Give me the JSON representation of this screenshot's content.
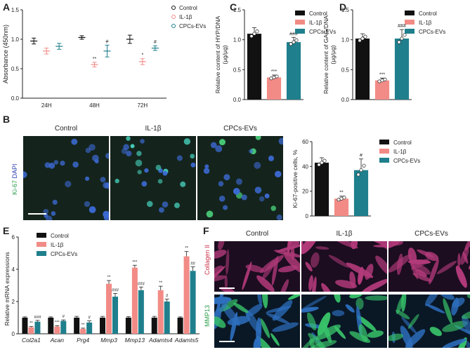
{
  "panels": {
    "A": "A",
    "B": "B",
    "C": "C",
    "D": "D",
    "E": "E",
    "F": "F"
  },
  "colors": {
    "control": "#111111",
    "il1b": "#f28b86",
    "cpcs": "#1f7f8c"
  },
  "chart_data": [
    {
      "id": "A",
      "type": "line",
      "ylabel": "Absorbance (450nm)",
      "ylim": [
        0,
        1.5
      ],
      "yticks": [
        "0.0",
        "0.5",
        "1.0",
        "1.5"
      ],
      "categories": [
        "24H",
        "48H",
        "72H"
      ],
      "legend": [
        "Control",
        "IL-1β",
        "CPCs-EVs"
      ],
      "legend_placement": "right",
      "series": [
        {
          "name": "Control",
          "values": [
            0.97,
            1.03,
            1.0
          ],
          "err": [
            0.05,
            0.03,
            0.07
          ]
        },
        {
          "name": "IL-1β",
          "values": [
            0.8,
            0.57,
            0.62
          ],
          "err": [
            0.05,
            0.04,
            0.05
          ]
        },
        {
          "name": "CPCs-EVs",
          "values": [
            0.88,
            0.8,
            0.85
          ],
          "err": [
            0.05,
            0.1,
            0.04
          ]
        }
      ],
      "annotations": [
        "",
        "",
        "",
        "",
        "**",
        "#",
        "",
        "*",
        "#"
      ]
    },
    {
      "id": "C",
      "type": "bar",
      "ylabel": "Relative content of HYP/DNA (μg/μg)",
      "ylim": [
        0,
        1.5
      ],
      "yticks": [
        "0.0",
        "0.5",
        "1.0",
        "1.5"
      ],
      "categories": [
        "Control",
        "IL-1β",
        "CPCs-EVs"
      ],
      "values": [
        1.1,
        0.37,
        0.96
      ],
      "err": [
        0.1,
        0.04,
        0.08
      ],
      "annotations": [
        "",
        "***",
        "###"
      ],
      "legend": [
        "Control",
        "IL-1β",
        "CPCs-EVs"
      ],
      "legend_placement": "top-right"
    },
    {
      "id": "D",
      "type": "bar",
      "ylabel": "Relative content of GAG/DNA (μg/μg)",
      "ylim": [
        0,
        1.5
      ],
      "yticks": [
        "0.0",
        "0.5",
        "1.0",
        "1.5"
      ],
      "categories": [
        "Control",
        "IL-1β",
        "CPCs-EVs"
      ],
      "values": [
        1.02,
        0.32,
        1.02
      ],
      "err": [
        0.08,
        0.04,
        0.15
      ],
      "annotations": [
        "",
        "***",
        "###"
      ],
      "legend": [
        "Control",
        "IL-1β",
        "CPCs-EVs"
      ],
      "legend_placement": "top-right"
    },
    {
      "id": "B",
      "type": "bar",
      "ylabel": "Ki-67-positive cells, %",
      "ylim": [
        0,
        60
      ],
      "yticks": [
        "0",
        "20",
        "40",
        "60"
      ],
      "categories": [
        "Control",
        "IL-1β",
        "CPCs-EVs"
      ],
      "values": [
        43,
        14,
        37
      ],
      "err": [
        4,
        2,
        9
      ],
      "annotations": [
        "",
        "**",
        "#"
      ],
      "legend": [
        "Control",
        "IL-1β",
        "CPCs-EVs"
      ],
      "legend_placement": "right"
    },
    {
      "id": "E",
      "type": "bar",
      "ylabel": "Relative mRNA expressions",
      "ylim": [
        0,
        6
      ],
      "yticks": [
        "0",
        "2",
        "4",
        "6"
      ],
      "categories": [
        "Col2a1",
        "Acan",
        "Prg4",
        "Mmp3",
        "Mmp13",
        "Adamts4",
        "Adamts5"
      ],
      "legend": [
        "Control",
        "IL-1β",
        "CPCs-EVs"
      ],
      "legend_placement": "top-left",
      "series": [
        {
          "name": "Control",
          "values": [
            1.0,
            1.0,
            1.0,
            1.0,
            1.0,
            1.0,
            1.0
          ],
          "err": [
            0.05,
            0.05,
            0.08,
            0.08,
            0.06,
            0.08,
            0.05
          ]
        },
        {
          "name": "IL-1β",
          "values": [
            0.4,
            0.45,
            0.3,
            3.1,
            4.1,
            2.7,
            4.8
          ],
          "err": [
            0.05,
            0.05,
            0.05,
            0.2,
            0.15,
            0.25,
            0.3
          ]
        },
        {
          "name": "CPCs-EVs",
          "values": [
            0.75,
            0.8,
            0.7,
            2.3,
            2.7,
            2.0,
            3.9
          ],
          "err": [
            0.08,
            0.06,
            0.1,
            0.2,
            0.2,
            0.15,
            0.25
          ]
        }
      ],
      "annotations_il1b": [
        "**",
        "***",
        "**",
        "**",
        "***",
        "**",
        "**"
      ],
      "annotations_cpcs": [
        "###",
        "#",
        "#",
        "###",
        "###",
        "#",
        "##"
      ]
    }
  ],
  "micrographs_B": {
    "titles": [
      "Control",
      "IL-1β",
      "CPCs-EVs"
    ],
    "stain_label_green": "Ki-67",
    "stain_label_blue": "DAPI"
  },
  "micrographs_F": {
    "titles": [
      "Control",
      "IL-1β",
      "CPCs-EVs"
    ],
    "row_labels": [
      "Collagen II",
      "MMP13"
    ]
  }
}
